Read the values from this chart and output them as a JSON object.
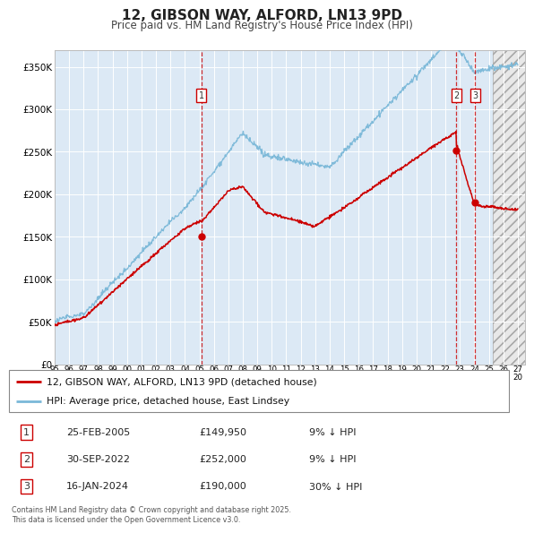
{
  "title": "12, GIBSON WAY, ALFORD, LN13 9PD",
  "subtitle": "Price paid vs. HM Land Registry's House Price Index (HPI)",
  "ylabel_ticks": [
    "£0",
    "£50K",
    "£100K",
    "£150K",
    "£200K",
    "£250K",
    "£300K",
    "£350K"
  ],
  "y_values": [
    0,
    50000,
    100000,
    150000,
    200000,
    250000,
    300000,
    350000
  ],
  "ylim": [
    0,
    370000
  ],
  "xlim_start": 1995.0,
  "xlim_end": 2027.5,
  "hpi_color": "#7ab8d8",
  "price_color": "#cc0000",
  "bg_color": "#dce9f5",
  "grid_color": "#ffffff",
  "sale_dates": [
    2005.146,
    2022.747,
    2024.042
  ],
  "sale_prices": [
    149950,
    252000,
    190000
  ],
  "sale_labels": [
    "1",
    "2",
    "3"
  ],
  "legend_line1": "12, GIBSON WAY, ALFORD, LN13 9PD (detached house)",
  "legend_line2": "HPI: Average price, detached house, East Lindsey",
  "table_rows": [
    [
      "1",
      "25-FEB-2005",
      "£149,950",
      "9% ↓ HPI"
    ],
    [
      "2",
      "30-SEP-2022",
      "£252,000",
      "9% ↓ HPI"
    ],
    [
      "3",
      "16-JAN-2024",
      "£190,000",
      "30% ↓ HPI"
    ]
  ],
  "footer": "Contains HM Land Registry data © Crown copyright and database right 2025.\nThis data is licensed under the Open Government Licence v3.0.",
  "x_tick_years": [
    1995,
    1996,
    1997,
    1998,
    1999,
    2000,
    2001,
    2002,
    2003,
    2004,
    2005,
    2006,
    2007,
    2008,
    2009,
    2010,
    2011,
    2012,
    2013,
    2014,
    2015,
    2016,
    2017,
    2018,
    2019,
    2020,
    2021,
    2022,
    2023,
    2024,
    2025,
    2026,
    2027
  ],
  "hatch_start": 2025.3
}
